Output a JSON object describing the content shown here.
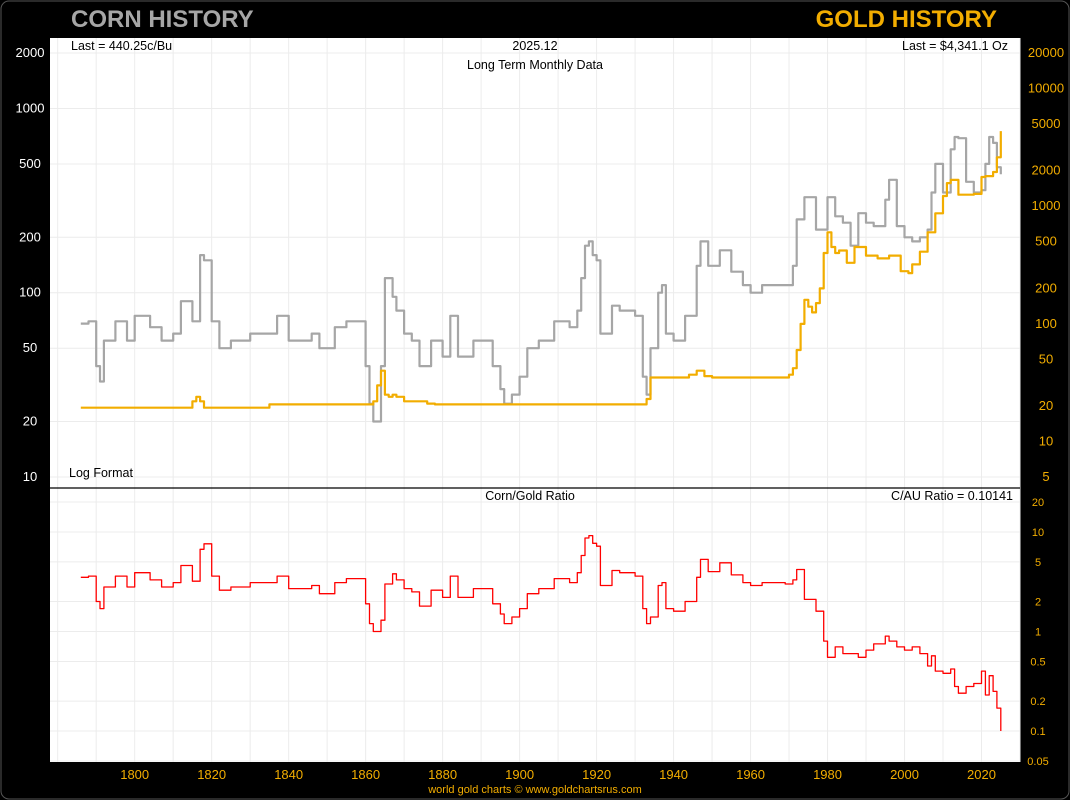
{
  "header": {
    "left_title": "CORN HISTORY",
    "right_title": "GOLD HISTORY",
    "left_color": "#a6a6a6",
    "right_color": "#f2ad00"
  },
  "footer": "world gold charts © www.goldchartsrus.com",
  "chart_data": [
    {
      "type": "line",
      "title": "Long Term Monthly Data",
      "date_label": "2025.12",
      "left_annotation": "Last = 440.25c/Bu",
      "right_annotation": "Last = $4,341.1 Oz",
      "scale_note": "Log Format",
      "log_scale": true,
      "grid": true,
      "x_ticks": [
        1800,
        1820,
        1840,
        1860,
        1880,
        1900,
        1920,
        1940,
        1960,
        1980,
        2000,
        2020
      ],
      "xlim": [
        1778,
        2030
      ],
      "left_axis": {
        "ticks": [
          10,
          20,
          50,
          100,
          200,
          500,
          1000,
          2000
        ],
        "labels": [
          "10",
          "20",
          "50",
          "100",
          "200",
          "500",
          "1000",
          "2000"
        ]
      },
      "right_axis": {
        "ticks": [
          5,
          10,
          20,
          50,
          100,
          200,
          500,
          1000,
          2000,
          5000,
          10000,
          20000
        ],
        "labels": [
          "5",
          "10",
          "20",
          "50",
          "100",
          "200",
          "500",
          "1000",
          "2000",
          "5000",
          "10000",
          "20000"
        ]
      },
      "series": [
        {
          "name": "Corn",
          "axis": "left",
          "color": "#a6a6a6",
          "x": [
            1786,
            1788,
            1790,
            1791,
            1792,
            1795,
            1798,
            1800,
            1804,
            1807,
            1810,
            1812,
            1815,
            1817,
            1818,
            1820,
            1822,
            1825,
            1830,
            1834,
            1837,
            1840,
            1843,
            1846,
            1848,
            1852,
            1855,
            1858,
            1860,
            1861,
            1862,
            1864,
            1865,
            1867,
            1868,
            1870,
            1872,
            1874,
            1877,
            1880,
            1882,
            1884,
            1886,
            1888,
            1891,
            1893,
            1895,
            1896,
            1898,
            1900,
            1902,
            1905,
            1909,
            1913,
            1915,
            1916,
            1917,
            1918,
            1919,
            1920,
            1921,
            1924,
            1926,
            1928,
            1930,
            1932,
            1933,
            1934,
            1936,
            1937,
            1938,
            1940,
            1943,
            1946,
            1947,
            1949,
            1952,
            1955,
            1958,
            1960,
            1963,
            1966,
            1969,
            1971,
            1972,
            1974,
            1977,
            1980,
            1982,
            1984,
            1986,
            1988,
            1990,
            1992,
            1995,
            1996,
            1998,
            2000,
            2002,
            2004,
            2006,
            2007,
            2008,
            2010,
            2012,
            2013,
            2014,
            2016,
            2018,
            2020,
            2021,
            2022,
            2023,
            2024,
            2025
          ],
          "values": [
            68,
            70,
            40,
            33,
            55,
            70,
            55,
            75,
            65,
            55,
            60,
            90,
            70,
            160,
            150,
            70,
            50,
            55,
            60,
            60,
            75,
            55,
            55,
            60,
            50,
            65,
            70,
            70,
            40,
            25,
            20,
            40,
            120,
            95,
            80,
            60,
            55,
            40,
            55,
            45,
            75,
            45,
            45,
            55,
            55,
            40,
            30,
            25,
            28,
            35,
            50,
            55,
            70,
            65,
            80,
            120,
            180,
            190,
            160,
            150,
            60,
            85,
            80,
            80,
            75,
            35,
            28,
            50,
            100,
            110,
            60,
            55,
            75,
            140,
            190,
            140,
            170,
            130,
            110,
            100,
            110,
            110,
            110,
            140,
            250,
            330,
            220,
            330,
            260,
            240,
            180,
            270,
            240,
            230,
            320,
            410,
            230,
            200,
            190,
            200,
            220,
            350,
            500,
            350,
            600,
            700,
            690,
            400,
            350,
            360,
            500,
            700,
            650,
            480,
            440
          ]
        },
        {
          "name": "Gold",
          "axis": "right",
          "color": "#f2ad00",
          "x": [
            1786,
            1814,
            1815,
            1816,
            1817,
            1818,
            1834,
            1835,
            1840,
            1842,
            1850,
            1861,
            1862,
            1863,
            1864,
            1865,
            1866,
            1867,
            1868,
            1870,
            1872,
            1875,
            1876,
            1878,
            1879,
            1900,
            1930,
            1933,
            1934,
            1940,
            1944,
            1946,
            1948,
            1950,
            1952,
            1960,
            1968,
            1970,
            1971,
            1972,
            1973,
            1974,
            1975,
            1976,
            1977,
            1978,
            1979,
            1980,
            1981,
            1982,
            1983,
            1985,
            1987,
            1990,
            1993,
            1996,
            1999,
            2001,
            2002,
            2004,
            2006,
            2008,
            2010,
            2011,
            2012,
            2014,
            2016,
            2018,
            2020,
            2021,
            2022,
            2023,
            2024,
            2025
          ],
          "values": [
            19.4,
            19.4,
            22,
            24,
            22,
            19.4,
            19.4,
            20.7,
            20.7,
            20.7,
            20.7,
            20.7,
            22,
            30,
            40,
            25,
            24,
            25,
            24,
            22,
            22,
            22,
            21,
            20.7,
            20.7,
            20.7,
            20.7,
            23,
            35,
            35,
            37,
            40,
            36,
            35,
            35,
            35,
            35,
            37,
            42,
            60,
            100,
            160,
            140,
            125,
            150,
            200,
            400,
            600,
            450,
            400,
            420,
            330,
            450,
            380,
            360,
            380,
            280,
            270,
            320,
            410,
            600,
            870,
            1220,
            1570,
            1670,
            1250,
            1250,
            1270,
            1770,
            1800,
            1800,
            1950,
            2600,
            4341
          ]
        }
      ]
    },
    {
      "type": "line",
      "title": "Corn/Gold Ratio",
      "right_annotation": "C/AU Ratio = 0.10141",
      "log_scale": true,
      "grid": true,
      "x_ticks": [
        1800,
        1820,
        1840,
        1860,
        1880,
        1900,
        1920,
        1940,
        1960,
        1980,
        2000,
        2020
      ],
      "right_axis": {
        "ticks": [
          0.05,
          0.1,
          0.2,
          0.5,
          1,
          2,
          5,
          10,
          20
        ],
        "labels": [
          "0.05",
          "0.1",
          "0.2",
          "0.5",
          "1",
          "2",
          "5",
          "10",
          "20"
        ]
      },
      "series": [
        {
          "name": "Corn/Gold Ratio",
          "color": "#ff0000",
          "x": [
            1786,
            1788,
            1790,
            1791,
            1792,
            1795,
            1798,
            1800,
            1804,
            1807,
            1810,
            1812,
            1815,
            1817,
            1818,
            1820,
            1822,
            1825,
            1830,
            1834,
            1837,
            1840,
            1843,
            1846,
            1848,
            1852,
            1855,
            1858,
            1860,
            1861,
            1862,
            1864,
            1865,
            1867,
            1868,
            1870,
            1872,
            1874,
            1877,
            1880,
            1882,
            1884,
            1886,
            1888,
            1891,
            1893,
            1895,
            1896,
            1898,
            1900,
            1902,
            1905,
            1909,
            1913,
            1915,
            1916,
            1917,
            1918,
            1919,
            1920,
            1921,
            1924,
            1926,
            1928,
            1930,
            1932,
            1933,
            1934,
            1936,
            1937,
            1938,
            1940,
            1943,
            1946,
            1947,
            1949,
            1952,
            1955,
            1958,
            1960,
            1963,
            1966,
            1969,
            1971,
            1972,
            1974,
            1977,
            1979,
            1980,
            1982,
            1984,
            1986,
            1988,
            1990,
            1992,
            1995,
            1996,
            1998,
            2000,
            2002,
            2004,
            2006,
            2007,
            2008,
            2010,
            2012,
            2013,
            2014,
            2016,
            2018,
            2020,
            2021,
            2022,
            2023,
            2024,
            2025
          ],
          "values": [
            3.5,
            3.6,
            2.0,
            1.7,
            2.8,
            3.6,
            2.8,
            3.9,
            3.3,
            2.8,
            3.1,
            4.6,
            3.2,
            6.7,
            7.6,
            3.6,
            2.6,
            2.8,
            3.1,
            3.1,
            3.6,
            2.7,
            2.7,
            2.9,
            2.4,
            3.1,
            3.4,
            3.4,
            1.9,
            1.2,
            1.0,
            1.3,
            3.0,
            3.8,
            3.3,
            2.7,
            2.5,
            1.8,
            2.6,
            2.2,
            3.6,
            2.2,
            2.2,
            2.7,
            2.7,
            1.9,
            1.5,
            1.2,
            1.4,
            1.7,
            2.4,
            2.7,
            3.4,
            3.1,
            3.9,
            5.8,
            8.7,
            9.2,
            7.7,
            7.2,
            2.9,
            4.1,
            3.9,
            3.9,
            3.6,
            1.7,
            1.2,
            1.4,
            2.9,
            3.1,
            1.7,
            1.6,
            2.0,
            3.5,
            5.3,
            4.0,
            4.9,
            3.7,
            3.1,
            2.9,
            3.1,
            3.1,
            3.0,
            3.3,
            4.2,
            2.1,
            1.6,
            0.8,
            0.55,
            0.7,
            0.6,
            0.6,
            0.55,
            0.65,
            0.75,
            0.9,
            0.8,
            0.7,
            0.65,
            0.7,
            0.6,
            0.45,
            0.57,
            0.4,
            0.38,
            0.42,
            0.28,
            0.24,
            0.28,
            0.3,
            0.4,
            0.23,
            0.36,
            0.25,
            0.17,
            0.1
          ]
        }
      ]
    }
  ]
}
